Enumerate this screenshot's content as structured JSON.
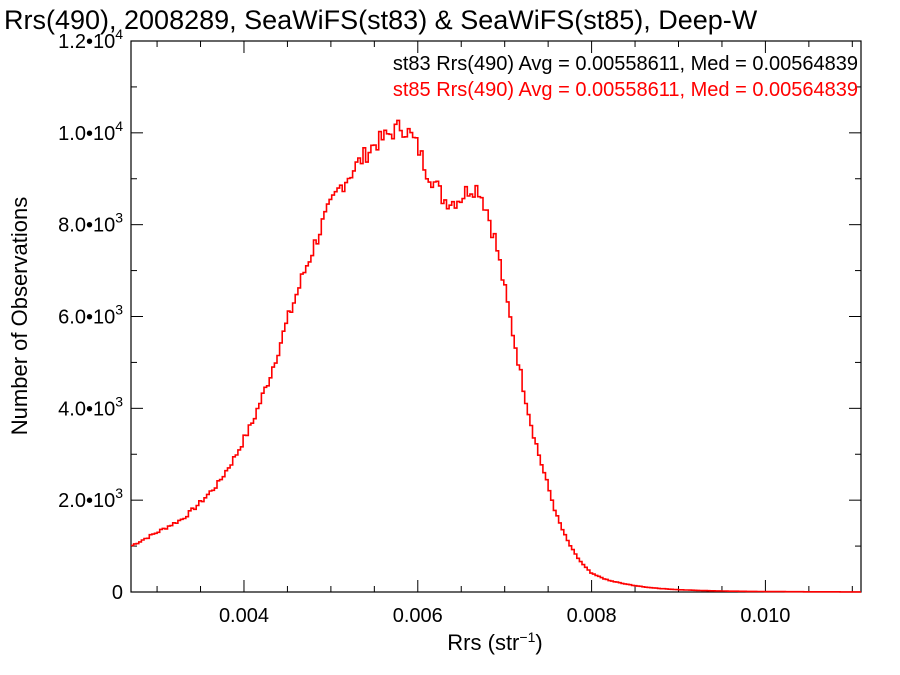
{
  "chart_data": {
    "type": "line",
    "title": "Rrs(490), 2008289, SeaWiFS(st83) & SeaWiFS(st85), Deep-W",
    "xlabel_main": "Rrs (str",
    "xlabel_sup": "−1",
    "xlabel_end": ")",
    "ylabel": "Number of Observations",
    "xlim": [
      0.0027,
      0.0111
    ],
    "ylim": [
      0,
      12000
    ],
    "x_ticks": [
      {
        "value": 0.004,
        "label": "0.004"
      },
      {
        "value": 0.006,
        "label": "0.006"
      },
      {
        "value": 0.008,
        "label": "0.008"
      },
      {
        "value": 0.01,
        "label": "0.010"
      }
    ],
    "y_ticks": [
      {
        "value": 0,
        "mant": "0",
        "exp": ""
      },
      {
        "value": 2000,
        "mant": "2.0•10",
        "exp": "3"
      },
      {
        "value": 4000,
        "mant": "4.0•10",
        "exp": "3"
      },
      {
        "value": 6000,
        "mant": "6.0•10",
        "exp": "3"
      },
      {
        "value": 8000,
        "mant": "8.0•10",
        "exp": "3"
      },
      {
        "value": 10000,
        "mant": "1.0•10",
        "exp": "4"
      },
      {
        "value": 12000,
        "mant": "1.2•10",
        "exp": "4"
      }
    ],
    "stats": [
      {
        "text": "st83 Rrs(490) Avg = 0.00558611, Med = 0.00564839",
        "color": "#000000"
      },
      {
        "text": "st85 Rrs(490) Avg = 0.00558611, Med = 0.00564839",
        "color": "#ff0000"
      }
    ],
    "series": [
      {
        "color": "#ff0000",
        "points": [
          [
            0.0027,
            1000
          ],
          [
            0.003,
            1300
          ],
          [
            0.0033,
            1600
          ],
          [
            0.0035,
            1950
          ],
          [
            0.0037,
            2350
          ],
          [
            0.0039,
            2950
          ],
          [
            0.0041,
            3700
          ],
          [
            0.0043,
            4700
          ],
          [
            0.0045,
            5900
          ],
          [
            0.0047,
            7000
          ],
          [
            0.0049,
            8000
          ],
          [
            0.0051,
            8800
          ],
          [
            0.0053,
            9300
          ],
          [
            0.0055,
            9750
          ],
          [
            0.0057,
            10000
          ],
          [
            0.0058,
            10150
          ],
          [
            0.0059,
            10000
          ],
          [
            0.006,
            9700
          ],
          [
            0.0061,
            9200
          ],
          [
            0.0062,
            8900
          ],
          [
            0.0063,
            8550
          ],
          [
            0.0064,
            8500
          ],
          [
            0.0065,
            8600
          ],
          [
            0.0066,
            8800
          ],
          [
            0.0067,
            8800
          ],
          [
            0.0068,
            8300
          ],
          [
            0.0069,
            7600
          ],
          [
            0.007,
            6600
          ],
          [
            0.0071,
            5600
          ],
          [
            0.0072,
            4600
          ],
          [
            0.0073,
            3700
          ],
          [
            0.0074,
            2950
          ],
          [
            0.0075,
            2300
          ],
          [
            0.0076,
            1650
          ],
          [
            0.0077,
            1200
          ],
          [
            0.0078,
            850
          ],
          [
            0.0079,
            600
          ],
          [
            0.008,
            400
          ],
          [
            0.0082,
            250
          ],
          [
            0.0084,
            170
          ],
          [
            0.0086,
            110
          ],
          [
            0.0088,
            75
          ],
          [
            0.009,
            50
          ],
          [
            0.0093,
            30
          ],
          [
            0.0096,
            18
          ],
          [
            0.01,
            10
          ],
          [
            0.0105,
            5
          ],
          [
            0.0111,
            2
          ]
        ]
      }
    ]
  }
}
